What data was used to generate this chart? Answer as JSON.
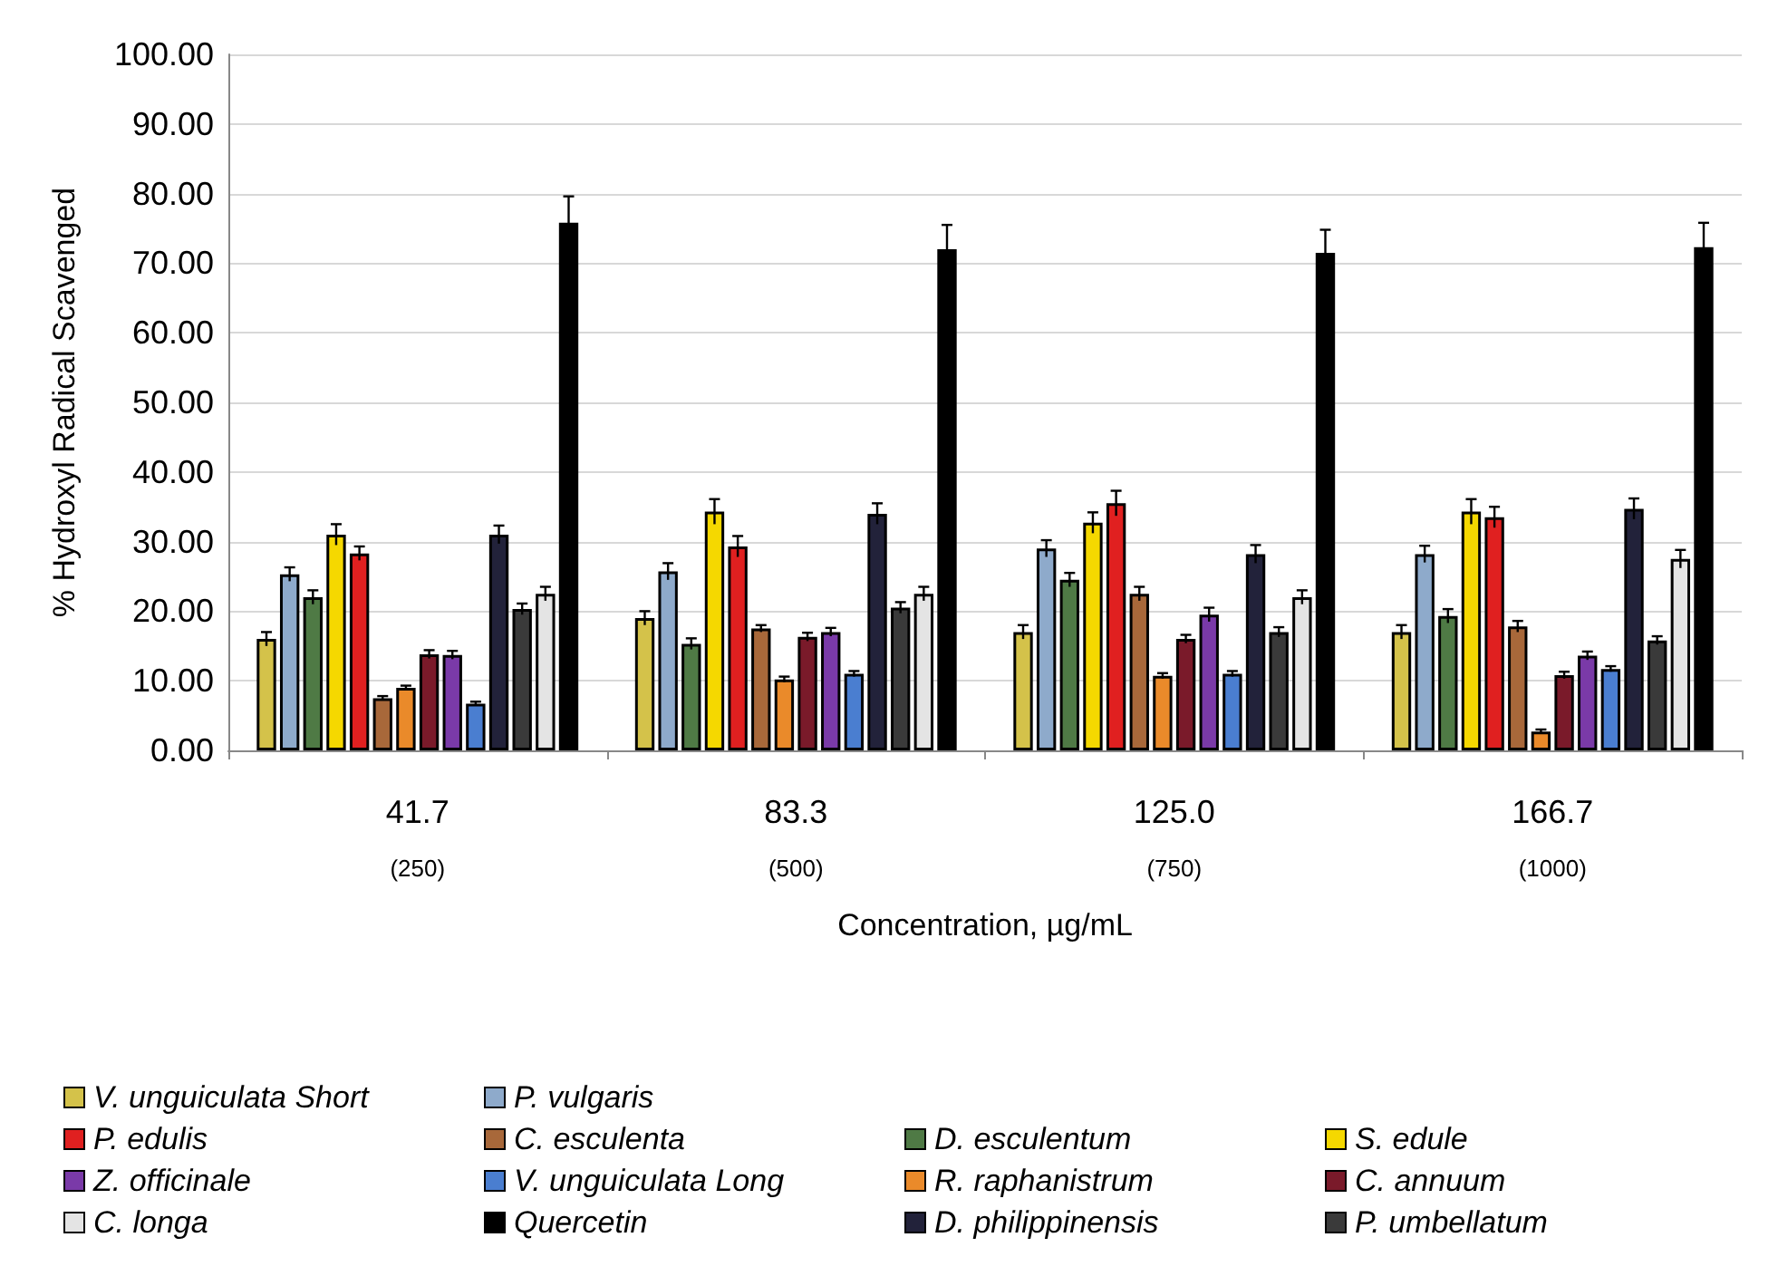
{
  "chart_data": {
    "type": "bar",
    "xlabel": "Concentration, µg/mL",
    "ylabel": "% Hydroxyl Radical Scavenged",
    "categories": [
      "41.7\n(250)",
      "83.3\n(500)",
      "125.0\n(750)",
      "166.7\n(1000)"
    ],
    "ylim": [
      0,
      100
    ],
    "yticks": [
      {
        "value": 0,
        "label": "0.00"
      },
      {
        "value": 10,
        "label": "10.00"
      },
      {
        "value": 20,
        "label": "20.00"
      },
      {
        "value": 30,
        "label": "30.00"
      },
      {
        "value": 40,
        "label": "40.00"
      },
      {
        "value": 50,
        "label": "50.00"
      },
      {
        "value": 60,
        "label": "60.00"
      },
      {
        "value": 70,
        "label": "70.00"
      },
      {
        "value": 80,
        "label": "80.00"
      },
      {
        "value": 90,
        "label": "90.00"
      },
      {
        "value": 100,
        "label": "100.00"
      }
    ],
    "grid": "y",
    "legend": "bottom",
    "series": [
      {
        "name": "V. unguiculata Short",
        "color": "#d4c24a",
        "values": [
          16,
          19,
          17,
          17
        ],
        "errors": [
          1,
          1,
          1,
          1
        ]
      },
      {
        "name": "P. vulgaris",
        "color": "#8eaacb",
        "values": [
          25.3,
          25.7,
          29,
          28.2
        ],
        "errors": [
          1,
          1.2,
          1.2,
          1.2
        ]
      },
      {
        "name": "D. esculentum",
        "color": "#4f7a45",
        "values": [
          22,
          15.3,
          24.5,
          19.3
        ],
        "errors": [
          1,
          0.8,
          1,
          1
        ]
      },
      {
        "name": "S. edule",
        "color": "#f5d800",
        "values": [
          31,
          34.3,
          32.7,
          34.3
        ],
        "errors": [
          1.5,
          1.8,
          1.5,
          1.8
        ]
      },
      {
        "name": "P. edulis",
        "color": "#e02020",
        "values": [
          28.3,
          29.3,
          35.5,
          33.5
        ],
        "errors": [
          1,
          1.5,
          1.8,
          1.5
        ]
      },
      {
        "name": "C. esculenta",
        "color": "#a8683a",
        "values": [
          7.5,
          17.5,
          22.5,
          17.8
        ],
        "errors": [
          0.3,
          0.5,
          1,
          0.8
        ]
      },
      {
        "name": "R. raphanistrum",
        "color": "#ea8a2a",
        "values": [
          9,
          10.2,
          10.7,
          2.7
        ],
        "errors": [
          0.3,
          0.4,
          0.4,
          0.3
        ]
      },
      {
        "name": "C. annuum",
        "color": "#7a1a2a",
        "values": [
          13.8,
          16.3,
          16,
          10.8
        ],
        "errors": [
          0.6,
          0.6,
          0.6,
          0.5
        ]
      },
      {
        "name": "Z. officinale",
        "color": "#7a3aa8",
        "values": [
          13.7,
          17,
          19.5,
          13.6
        ],
        "errors": [
          0.6,
          0.6,
          1,
          0.6
        ]
      },
      {
        "name": "V. unguiculata Long",
        "color": "#4a7ed0",
        "values": [
          6.7,
          11,
          11,
          11.7
        ],
        "errors": [
          0.3,
          0.4,
          0.4,
          0.4
        ]
      },
      {
        "name": "D. philippinensis",
        "color": "#22223a",
        "values": [
          31,
          34,
          28.2,
          34.7
        ],
        "errors": [
          1.3,
          1.5,
          1.3,
          1.5
        ]
      },
      {
        "name": "P. umbellatum",
        "color": "#3a3a3a",
        "values": [
          20.3,
          20.5,
          17,
          15.8
        ],
        "errors": [
          0.8,
          0.8,
          0.7,
          0.6
        ]
      },
      {
        "name": "C. longa",
        "color": "#e4e4e4",
        "values": [
          22.5,
          22.5,
          22,
          27.5
        ],
        "errors": [
          1,
          1,
          1,
          1.3
        ]
      },
      {
        "name": "Quercetin",
        "color": "#000000",
        "values": [
          75.8,
          72,
          71.5,
          72.3
        ],
        "errors": [
          3.8,
          3.5,
          3.3,
          3.5
        ]
      }
    ]
  }
}
